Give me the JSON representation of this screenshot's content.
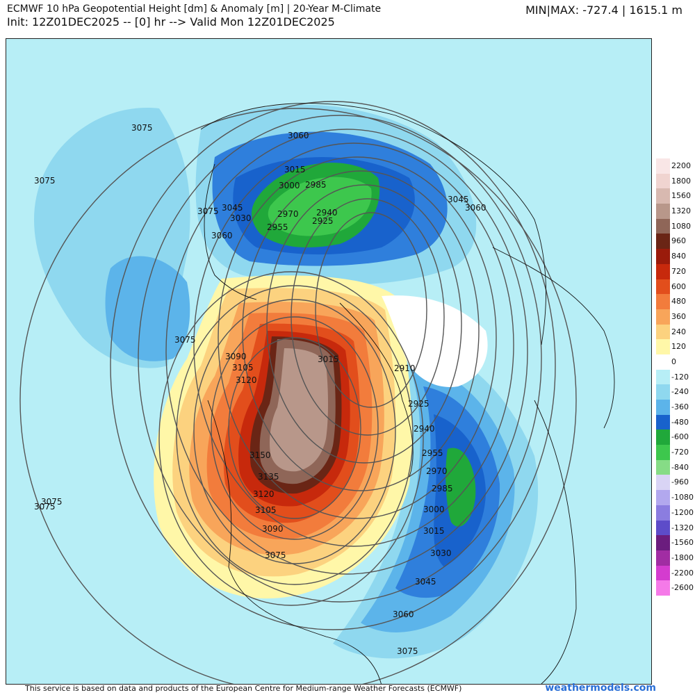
{
  "header": {
    "title": "ECMWF 10 hPa Geopotential Height [dm] & Anomaly [m] | 20-Year M-Climate",
    "subtitle": "Init: 12Z01DEC2025 -- [0] hr --> Valid Mon 12Z01DEC2025",
    "minmax": "MIN|MAX: -727.4 | 1615.1 m"
  },
  "colors": {
    "ocean_anomaly_base": "#b7eef6",
    "neutral": "#ffffff",
    "pos_120": "#fff7a8",
    "pos_240": "#fcd27f",
    "pos_360": "#f8a55a",
    "pos_480": "#f27c3c",
    "pos_600": "#e24e1c",
    "pos_720": "#c42b0e",
    "pos_840": "#8e2b17",
    "pos_960": "#6b3626",
    "pos_1080": "#7f5446",
    "pos_1320": "#9f7d70",
    "neg_120": "#8fd8ef",
    "neg_240": "#5cb4ea",
    "neg_360": "#2f7fdc",
    "neg_480": "#1862cc",
    "neg_600": "#20a83a",
    "neg_720": "#3dc74d",
    "land_line": "#111111",
    "contour_line": "#555555"
  },
  "map": {
    "contour_labels": [
      {
        "text": "3075"
      },
      {
        "text": "3075"
      },
      {
        "text": "3075"
      },
      {
        "text": "3075"
      },
      {
        "text": "3060"
      },
      {
        "text": "3045"
      },
      {
        "text": "3030"
      },
      {
        "text": "3015"
      },
      {
        "text": "3000"
      },
      {
        "text": "2985"
      },
      {
        "text": "2970"
      },
      {
        "text": "2955"
      },
      {
        "text": "2940"
      },
      {
        "text": "2925"
      },
      {
        "text": "3060"
      },
      {
        "text": "3045"
      },
      {
        "text": "3060"
      },
      {
        "text": "3075"
      },
      {
        "text": "3090"
      },
      {
        "text": "3105"
      },
      {
        "text": "3120"
      },
      {
        "text": "3015"
      },
      {
        "text": "2910"
      },
      {
        "text": "2925"
      },
      {
        "text": "2940"
      },
      {
        "text": "2955"
      },
      {
        "text": "2970"
      },
      {
        "text": "2985"
      },
      {
        "text": "3000"
      },
      {
        "text": "3015"
      },
      {
        "text": "3030"
      },
      {
        "text": "3045"
      },
      {
        "text": "3060"
      },
      {
        "text": "3075"
      },
      {
        "text": "3075"
      },
      {
        "text": "3150"
      },
      {
        "text": "3135"
      },
      {
        "text": "3120"
      },
      {
        "text": "3105"
      },
      {
        "text": "3090"
      },
      {
        "text": "3075"
      },
      {
        "text": "3075"
      }
    ]
  },
  "legend": {
    "items": [
      {
        "label": "2200",
        "color": "#f9e6e6"
      },
      {
        "label": "1800",
        "color": "#f0d4d0"
      },
      {
        "label": "1560",
        "color": "#d8b9b0"
      },
      {
        "label": "1320",
        "color": "#b8978a"
      },
      {
        "label": "1080",
        "color": "#8f6658"
      },
      {
        "label": "960",
        "color": "#6a2515"
      },
      {
        "label": "840",
        "color": "#9a1b0b"
      },
      {
        "label": "720",
        "color": "#c7290c"
      },
      {
        "label": "600",
        "color": "#e24e1c"
      },
      {
        "label": "480",
        "color": "#f27c3c"
      },
      {
        "label": "360",
        "color": "#f8a55a"
      },
      {
        "label": "240",
        "color": "#fcd27f"
      },
      {
        "label": "120",
        "color": "#fff7a8"
      },
      {
        "label": "0",
        "color": "#ffffff"
      },
      {
        "label": "-120",
        "color": "#b7eef6"
      },
      {
        "label": "-240",
        "color": "#8fd8ef"
      },
      {
        "label": "-360",
        "color": "#5cb4ea"
      },
      {
        "label": "-480",
        "color": "#1862cc"
      },
      {
        "label": "-600",
        "color": "#20a83a"
      },
      {
        "label": "-720",
        "color": "#3dc74d"
      },
      {
        "label": "-840",
        "color": "#86dc86"
      },
      {
        "label": "-960",
        "color": "#d9d4f5"
      },
      {
        "label": "-1080",
        "color": "#b2a8ee"
      },
      {
        "label": "-1200",
        "color": "#8b7de0"
      },
      {
        "label": "-1320",
        "color": "#5d4cc9"
      },
      {
        "label": "-1560",
        "color": "#6b1d7e"
      },
      {
        "label": "-1800",
        "color": "#a12da3"
      },
      {
        "label": "-2200",
        "color": "#d43ccf"
      },
      {
        "label": "-2600",
        "color": "#f57ae8"
      }
    ]
  },
  "footer": {
    "note": "This service is based on data and products of the European Centre for Medium-range Weather Forecasts (ECMWF)",
    "brand": "weathermodels.com"
  }
}
